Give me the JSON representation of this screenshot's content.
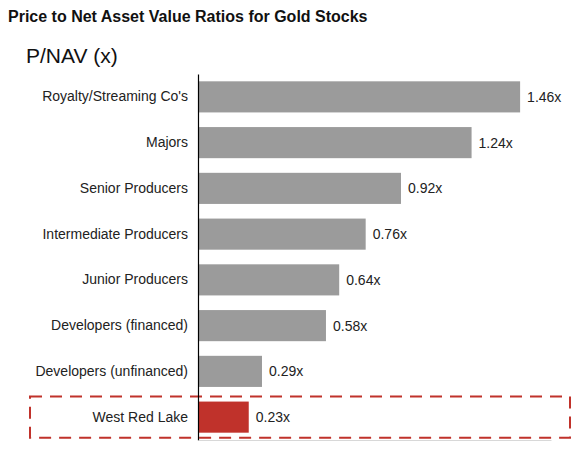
{
  "chart_data": {
    "type": "bar",
    "orientation": "horizontal",
    "title": "Price to Net Asset Value Ratios for Gold Stocks",
    "subtitle": "P/NAV (x)",
    "categories": [
      "Royalty/Streaming Co's",
      "Majors",
      "Senior Producers",
      "Intermediate Producers",
      "Junior Producers",
      "Developers (financed)",
      "Developers (unfinanced)",
      "West Red Lake"
    ],
    "values": [
      1.46,
      1.24,
      0.92,
      0.76,
      0.64,
      0.58,
      0.29,
      0.23
    ],
    "value_labels": [
      "1.46x",
      "1.24x",
      "0.92x",
      "0.76x",
      "0.64x",
      "0.58x",
      "0.29x",
      "0.23x"
    ],
    "colors": [
      "#9b9b9b",
      "#9b9b9b",
      "#9b9b9b",
      "#9b9b9b",
      "#9b9b9b",
      "#9b9b9b",
      "#9b9b9b",
      "#c0322b"
    ],
    "xlim": [
      0,
      1.6
    ],
    "data_labels": true,
    "tick_labels": "y",
    "grid": false
  }
}
